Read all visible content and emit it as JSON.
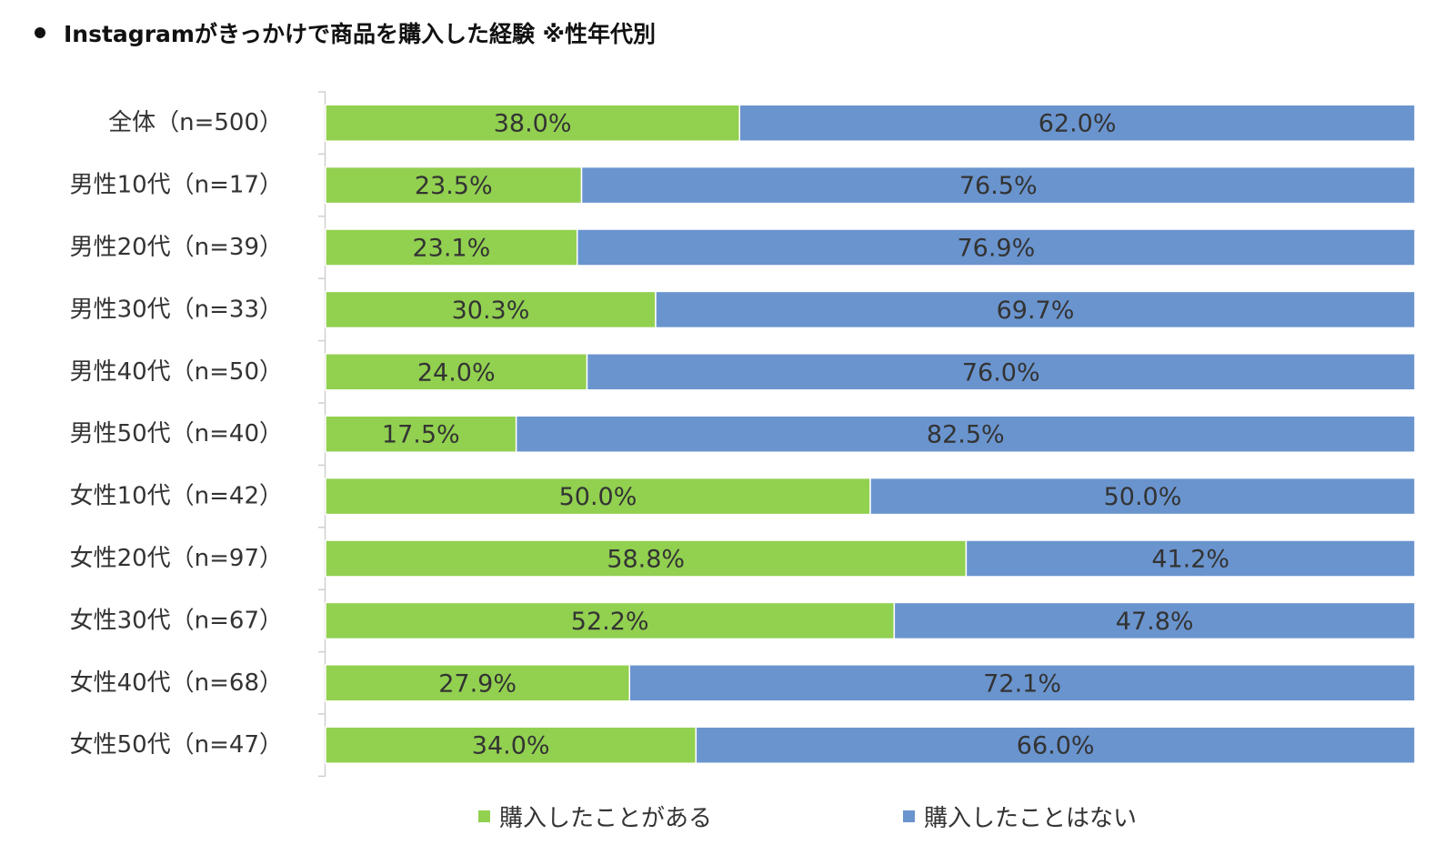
{
  "title": "Instagramがきっかけで商品を購入した経験 ※性年代別",
  "chart_data": {
    "type": "bar",
    "orientation": "horizontal",
    "stacked": true,
    "percent_stacked": true,
    "title": "Instagramがきっかけで商品を購入した経験 ※性年代別",
    "categories": [
      "全体（n=500）",
      "男性10代（n=17）",
      "男性20代（n=39）",
      "男性30代（n=33）",
      "男性40代（n=50）",
      "男性50代（n=40）",
      "女性10代（n=42）",
      "女性20代（n=97）",
      "女性30代（n=67）",
      "女性40代（n=68）",
      "女性50代（n=47）"
    ],
    "series": [
      {
        "name": "購入したことがある",
        "color": "#92D050",
        "values": [
          38.0,
          23.5,
          23.1,
          30.3,
          24.0,
          17.5,
          50.0,
          58.8,
          52.2,
          27.9,
          34.0
        ],
        "labels": [
          "38.0%",
          "23.5%",
          "23.1%",
          "30.3%",
          "24.0%",
          "17.5%",
          "50.0%",
          "58.8%",
          "52.2%",
          "27.9%",
          "34.0%"
        ]
      },
      {
        "name": "購入したことはない",
        "color": "#6A94CE",
        "values": [
          62.0,
          76.5,
          76.9,
          69.7,
          76.0,
          82.5,
          50.0,
          41.2,
          47.8,
          72.1,
          66.0
        ],
        "labels": [
          "62.0%",
          "76.5%",
          "76.9%",
          "69.7%",
          "76.0%",
          "82.5%",
          "50.0%",
          "41.2%",
          "47.8%",
          "72.1%",
          "66.0%"
        ]
      }
    ],
    "xlim": [
      0,
      100
    ],
    "grid": false,
    "legend_position": "bottom"
  }
}
